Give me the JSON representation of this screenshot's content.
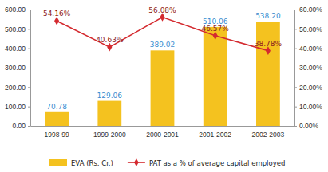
{
  "chart_data": {
    "type": "bar",
    "categories": [
      "1998-99",
      "1999-2000",
      "2000-2001",
      "2001-2002",
      "2002-2003"
    ],
    "series": [
      {
        "name": "EVA (Rs. Cr.)",
        "type": "bar",
        "color": "#f4c21f",
        "values": [
          70.78,
          129.06,
          389.02,
          510.06,
          538.2
        ],
        "value_labels": [
          "70.78",
          "129.06",
          "389.02",
          "510.06",
          "538.20"
        ]
      },
      {
        "name": "PAT as a % of average capital employed",
        "type": "line",
        "axis": "y2",
        "color": "#d42a2f",
        "marker": "diamond",
        "values": [
          54.16,
          40.63,
          56.08,
          46.57,
          38.78
        ],
        "value_labels": [
          "54.16%",
          "40.63%",
          "56.08%",
          "46.57%",
          "38.78%"
        ]
      }
    ],
    "ylim": [
      0,
      600
    ],
    "yticks": [
      {
        "value": 0,
        "label": "0.00"
      },
      {
        "value": 100,
        "label": "100.00"
      },
      {
        "value": 200,
        "label": "200.00"
      },
      {
        "value": 300,
        "label": "300.00"
      },
      {
        "value": 400,
        "label": "400.00"
      },
      {
        "value": 500,
        "label": "500.00"
      },
      {
        "value": 600,
        "label": "600.00"
      }
    ],
    "y2lim": [
      0,
      60
    ],
    "y2ticks": [
      {
        "value": 0,
        "label": "0.00%"
      },
      {
        "value": 10,
        "label": "10.00%"
      },
      {
        "value": 20,
        "label": "20.00%"
      },
      {
        "value": 30,
        "label": "30.00%"
      },
      {
        "value": 40,
        "label": "40.00%"
      },
      {
        "value": 50,
        "label": "50.00%"
      },
      {
        "value": 60,
        "label": "60.00%"
      }
    ],
    "data_labels": true,
    "legend": "bottom"
  }
}
